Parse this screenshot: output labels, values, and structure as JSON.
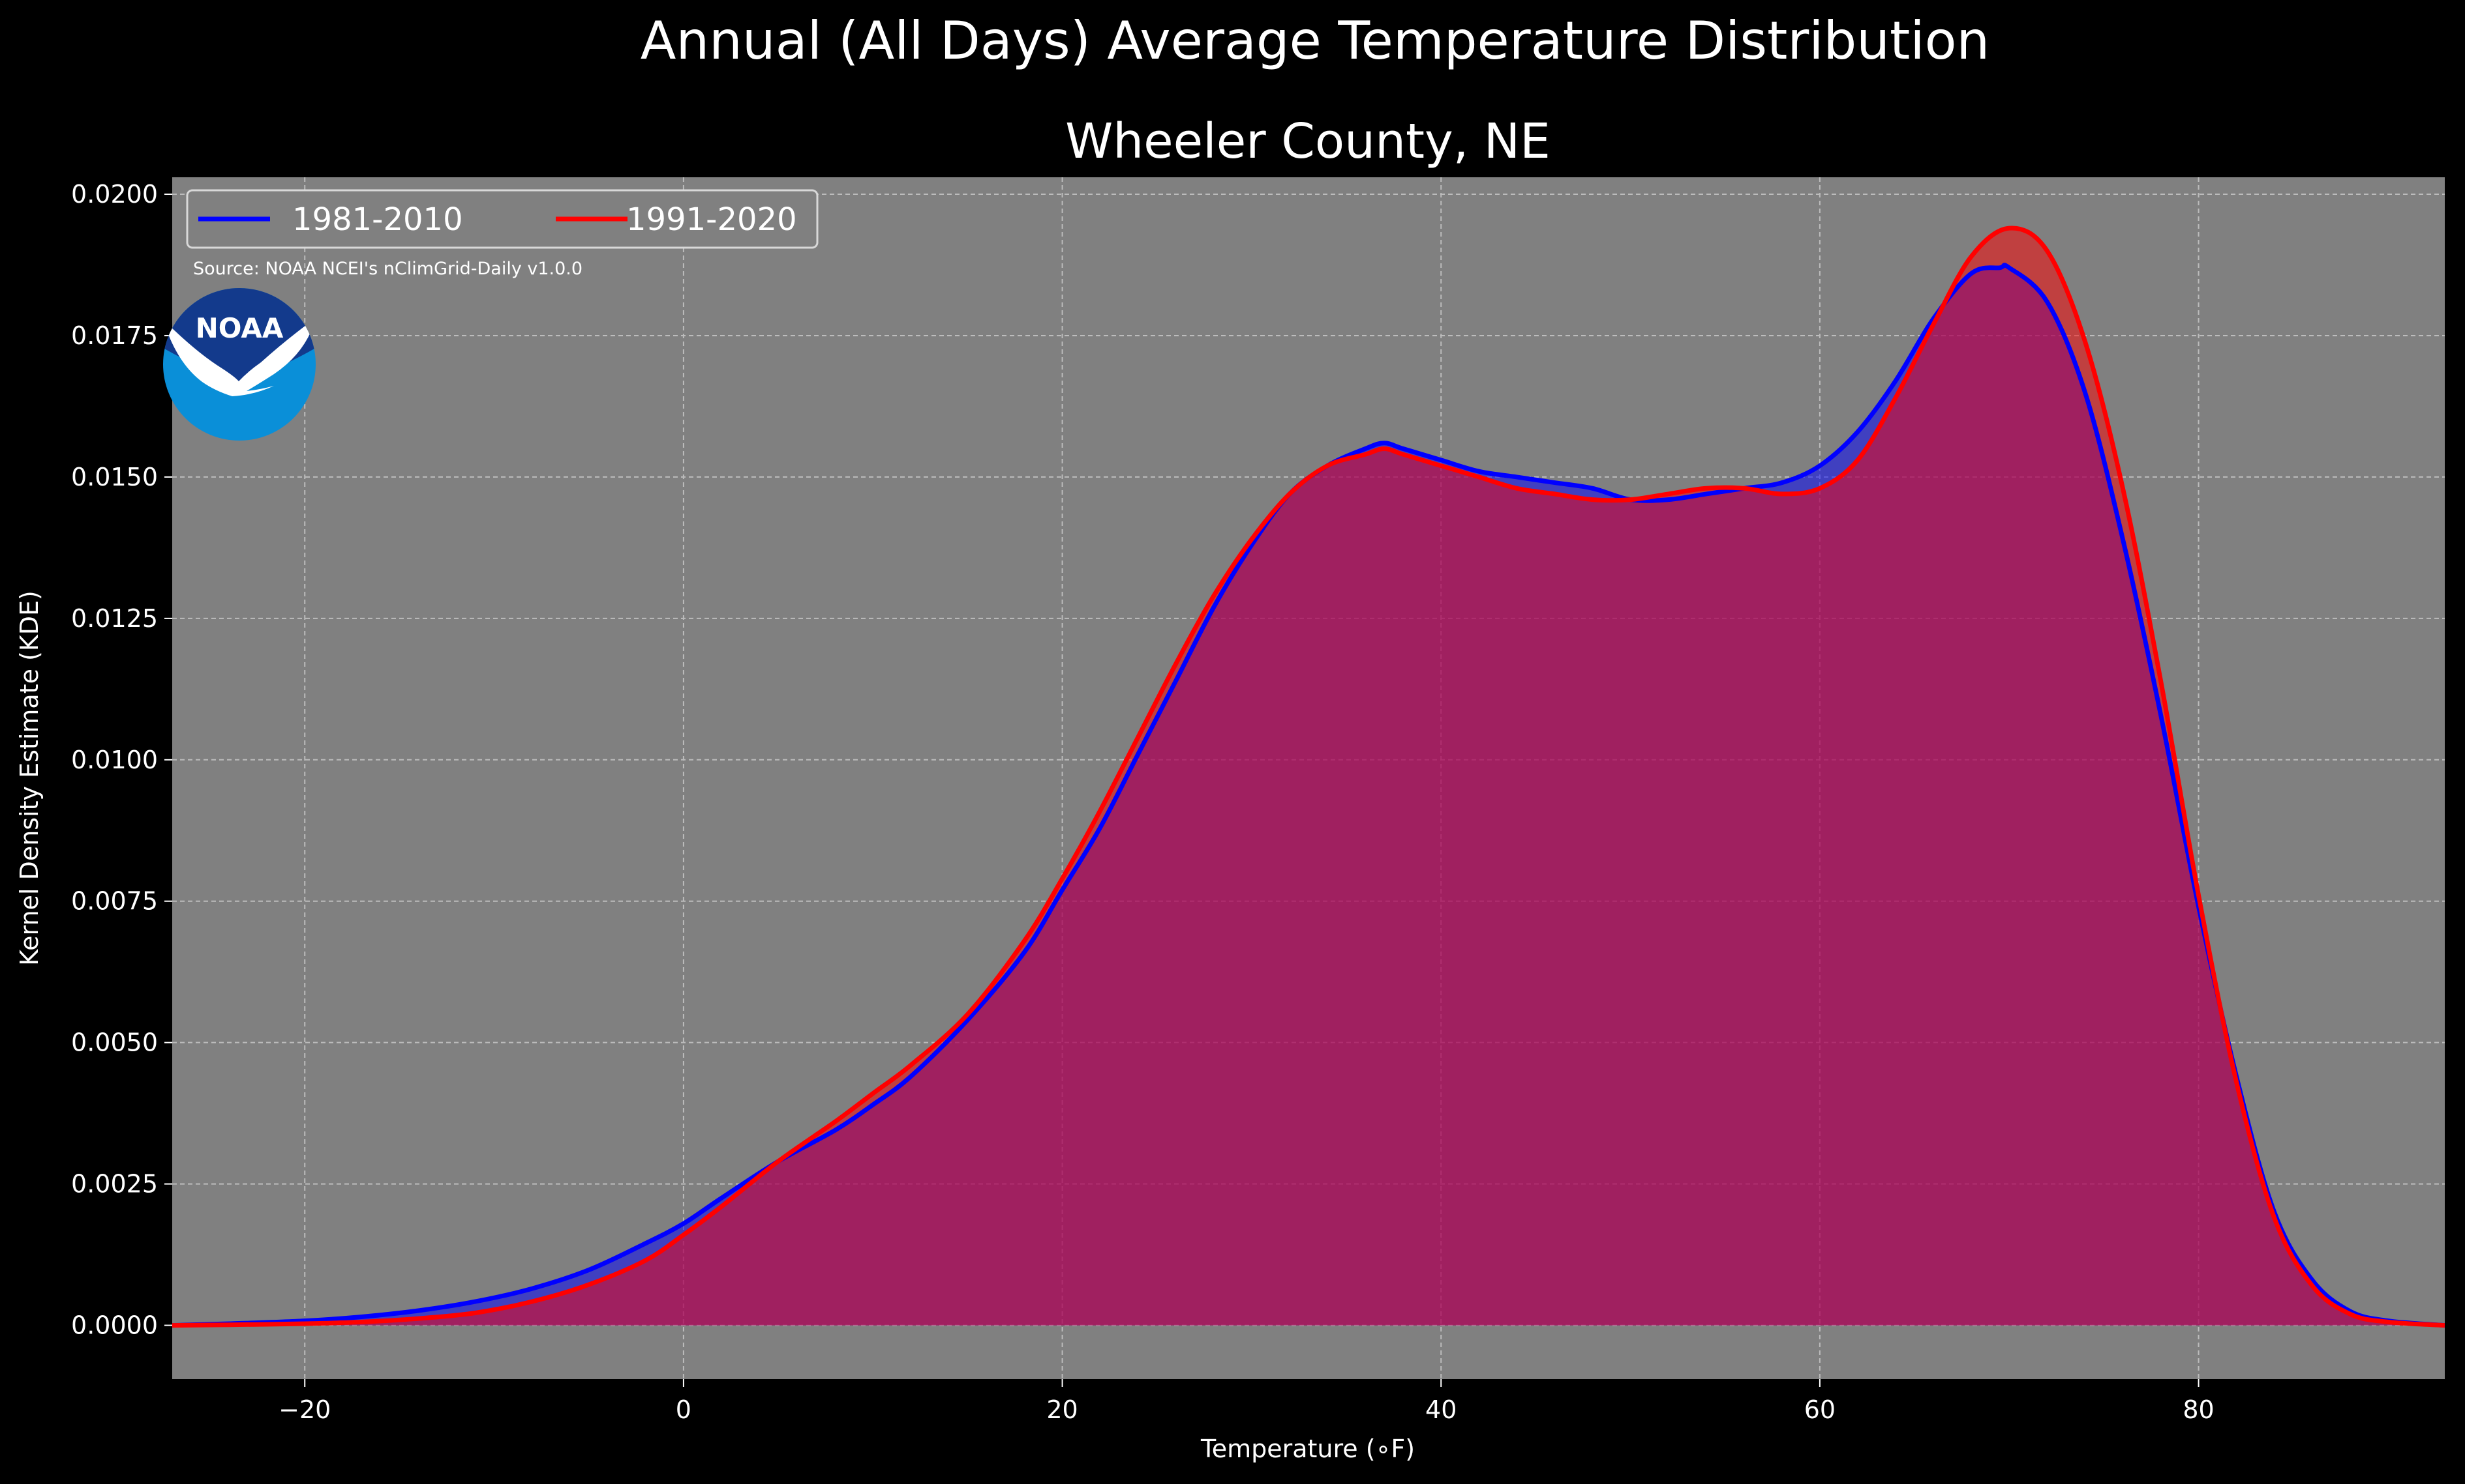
{
  "chart_data": {
    "type": "area",
    "title": "Annual (All Days) Average Temperature Distribution",
    "subtitle": "Wheeler County, NE",
    "xlabel": "Temperature (∘F)",
    "ylabel": "Kernel Density Estimate (KDE)",
    "source": "Source: NOAA NCEI's nClimGrid-Daily v1.0.0",
    "logo": "NOAA",
    "xlim": [
      -27,
      93
    ],
    "ylim": [
      -0.00095,
      0.0203
    ],
    "x_ticks": [
      -20,
      0,
      20,
      40,
      60,
      80
    ],
    "y_ticks": [
      0.0,
      0.0025,
      0.005,
      0.0075,
      0.01,
      0.0125,
      0.015,
      0.0175,
      0.02
    ],
    "x_tick_labels": [
      "−20",
      "0",
      "20",
      "40",
      "60",
      "80"
    ],
    "y_tick_labels": [
      "0.0000",
      "0.0025",
      "0.0050",
      "0.0075",
      "0.0100",
      "0.0125",
      "0.0150",
      "0.0175",
      "0.0200"
    ],
    "grid": true,
    "legend_placement": "top-left",
    "colors": {
      "figure_bg": "#000000",
      "plot_bg": "#808080",
      "series_1": "#0000ff",
      "series_2": "#ff0000"
    },
    "series": [
      {
        "name": "1981-2010",
        "color": "#0000ff",
        "x": [
          -27,
          -24,
          -20,
          -17,
          -14,
          -11,
          -8,
          -5,
          -2,
          0,
          2,
          5,
          8,
          10,
          12,
          15,
          18,
          20,
          22,
          24,
          26,
          28,
          30,
          32,
          34,
          36,
          37,
          38,
          40,
          42,
          44,
          46,
          48,
          50,
          52,
          54,
          56,
          58,
          60,
          62,
          64,
          66,
          68,
          69.5,
          70,
          72,
          74,
          76,
          78,
          80,
          82,
          84,
          86,
          88,
          90,
          93
        ],
        "values": [
          0.0,
          3e-05,
          8e-05,
          0.00015,
          0.00026,
          0.00042,
          0.00065,
          0.00098,
          0.00145,
          0.0018,
          0.00225,
          0.0029,
          0.00345,
          0.0039,
          0.0044,
          0.0054,
          0.0066,
          0.0077,
          0.0088,
          0.0101,
          0.0114,
          0.0127,
          0.0138,
          0.0147,
          0.0152,
          0.0155,
          0.0156,
          0.0155,
          0.0153,
          0.0151,
          0.015,
          0.0149,
          0.0148,
          0.0146,
          0.0146,
          0.0147,
          0.0148,
          0.0149,
          0.0152,
          0.0158,
          0.0167,
          0.0178,
          0.0186,
          0.0187,
          0.0187,
          0.0181,
          0.0165,
          0.0139,
          0.0108,
          0.0074,
          0.0044,
          0.002,
          0.0008,
          0.00025,
          8e-05,
          0.0
        ]
      },
      {
        "name": "1991-2020",
        "color": "#ff0000",
        "x": [
          -27,
          -24,
          -20,
          -17,
          -14,
          -11,
          -8,
          -5,
          -2,
          0,
          2,
          5,
          8,
          10,
          12,
          15,
          18,
          20,
          22,
          24,
          26,
          28,
          30,
          32,
          34,
          36,
          37,
          38,
          40,
          42,
          44,
          46,
          48,
          50,
          52,
          54,
          56,
          58,
          60,
          62,
          64,
          66,
          68,
          70,
          72,
          74,
          76,
          78,
          80,
          82,
          84,
          86,
          88,
          90,
          93
        ],
        "values": [
          0.0,
          1e-05,
          3e-05,
          6e-05,
          0.00012,
          0.00022,
          0.00042,
          0.00072,
          0.00115,
          0.0016,
          0.0021,
          0.0029,
          0.0036,
          0.0041,
          0.0046,
          0.0055,
          0.0068,
          0.0079,
          0.0091,
          0.0104,
          0.0117,
          0.0129,
          0.0139,
          0.0147,
          0.0152,
          0.0154,
          0.0155,
          0.0154,
          0.0152,
          0.015,
          0.0148,
          0.0147,
          0.0146,
          0.0146,
          0.0147,
          0.0148,
          0.0148,
          0.0147,
          0.0148,
          0.0153,
          0.0164,
          0.0177,
          0.0189,
          0.0194,
          0.019,
          0.0174,
          0.0148,
          0.0114,
          0.0076,
          0.0043,
          0.0019,
          0.0007,
          0.0002,
          6e-05,
          0.0
        ]
      }
    ]
  }
}
